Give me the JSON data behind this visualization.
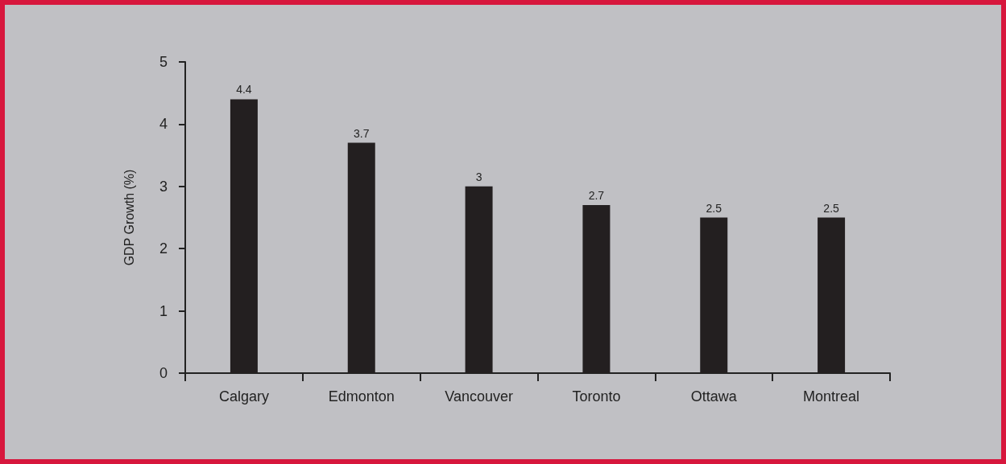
{
  "chart_data": {
    "type": "bar",
    "ylabel": "GDP Growth (%)",
    "categories": [
      "Calgary",
      "Edmonton",
      "Vancouver",
      "Toronto",
      "Ottawa",
      "Montreal"
    ],
    "values": [
      4.4,
      3.7,
      3,
      2.7,
      2.5,
      2.5
    ],
    "color": "#231f20",
    "ylim": [
      0,
      5
    ],
    "yticks": [
      0,
      1,
      2,
      3,
      4,
      5
    ],
    "grid": false,
    "data_labels": true
  }
}
